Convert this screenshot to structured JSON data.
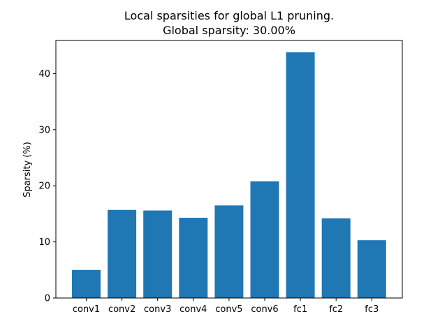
{
  "chart_data": {
    "type": "bar",
    "title": "Local sparsities for global L1 pruning.",
    "subtitle": "Global sparsity: 30.00%",
    "xlabel": "",
    "ylabel": "Sparsity (%)",
    "categories": [
      "conv1",
      "conv2",
      "conv3",
      "conv4",
      "conv5",
      "conv6",
      "fc1",
      "fc2",
      "fc3"
    ],
    "values": [
      5.0,
      15.7,
      15.6,
      14.3,
      16.5,
      20.8,
      43.8,
      14.2,
      10.3
    ],
    "ylim": [
      0,
      45.9
    ],
    "yticks": [
      0,
      10,
      20,
      30,
      40
    ],
    "bar_color": "#1f77b4",
    "grid": false,
    "legend": "none"
  }
}
